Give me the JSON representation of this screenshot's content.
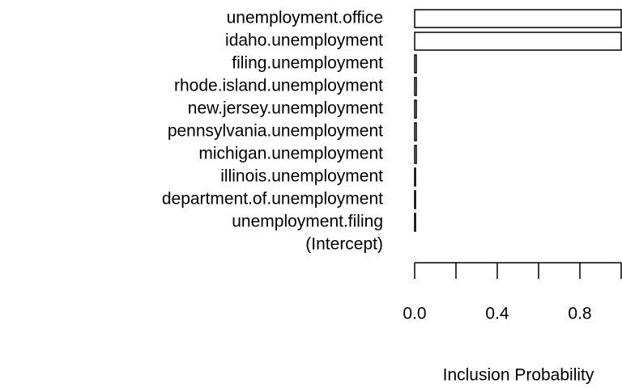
{
  "chart_data": {
    "type": "barh",
    "x_label": "Inclusion Probability",
    "categories": [
      "unemployment.office",
      "idaho.unemployment",
      "filing.unemployment",
      "rhode.island.unemployment",
      "new.jersey.unemployment",
      "pennsylvania.unemployment",
      "michigan.unemployment",
      "illinois.unemployment",
      "department.of.unemployment",
      "unemployment.filing",
      "(Intercept)"
    ],
    "values": [
      1,
      1,
      0.008,
      0.008,
      0.008,
      0.008,
      0.008,
      0.004,
      0.004,
      0.004,
      0
    ],
    "color": "#ffffff",
    "edge_color": "#000000",
    "xlim": [
      0,
      1
    ],
    "xticks": [
      {
        "value": 0,
        "label": "0.0"
      },
      {
        "value": 0.4,
        "label": "0.4"
      },
      {
        "value": 0.8,
        "label": "0.8"
      }
    ],
    "xticks_unlabeled": [
      0.2,
      0.6,
      1
    ]
  }
}
